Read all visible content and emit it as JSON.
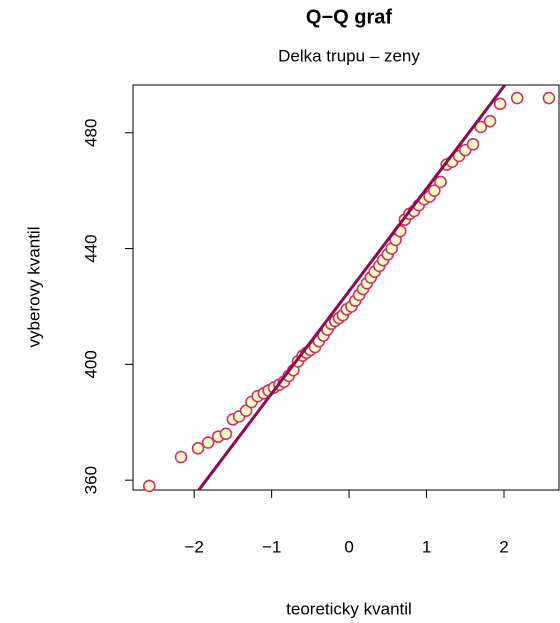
{
  "chart_data": {
    "type": "scatter",
    "title": "Q−Q graf",
    "subtitle": "Delka trupu – zeny",
    "x_label": "teoreticky kvantil",
    "y_label": "vyberovy kvantil",
    "x": [
      -2.58,
      -2.17,
      -1.95,
      -1.82,
      -1.69,
      -1.59,
      -1.5,
      -1.42,
      -1.33,
      -1.26,
      -1.18,
      -1.1,
      -1.04,
      -0.97,
      -0.9,
      -0.84,
      -0.78,
      -0.72,
      -0.66,
      -0.6,
      -0.55,
      -0.5,
      -0.44,
      -0.39,
      -0.33,
      -0.28,
      -0.23,
      -0.18,
      -0.13,
      -0.08,
      -0.03,
      0.03,
      0.08,
      0.13,
      0.18,
      0.23,
      0.28,
      0.33,
      0.39,
      0.44,
      0.5,
      0.55,
      0.6,
      0.66,
      0.72,
      0.78,
      0.84,
      0.9,
      0.97,
      1.04,
      1.1,
      1.18,
      1.26,
      1.33,
      1.42,
      1.5,
      1.6,
      1.7,
      1.82,
      1.95,
      2.17,
      2.58
    ],
    "y": [
      358,
      368,
      371,
      373,
      375,
      376,
      381,
      382,
      384,
      387,
      389,
      390,
      391,
      392,
      393,
      394,
      396,
      398,
      401,
      403,
      404,
      405,
      406,
      408,
      410,
      412,
      414,
      415,
      416,
      417,
      419,
      420,
      422,
      424,
      426,
      428,
      430,
      432,
      434,
      436,
      438,
      440,
      443,
      446,
      450,
      452,
      453,
      455,
      457,
      458,
      460,
      463,
      469,
      470,
      472,
      474,
      476,
      482,
      484,
      490,
      492,
      492
    ],
    "point_color": "#cc3366",
    "point_fill": "#ffffcc",
    "reference_line": {
      "intercept": 425.3,
      "slope": 35.4,
      "color": "#8b0a50"
    },
    "xlim": [
      -2.79,
      2.71
    ],
    "ylim": [
      356.6,
      496.5
    ],
    "xticks": [
      {
        "value": -2,
        "label": "−2"
      },
      {
        "value": -1,
        "label": "−1"
      },
      0,
      1,
      2
    ],
    "yticks": [
      360,
      400,
      440,
      480
    ]
  }
}
